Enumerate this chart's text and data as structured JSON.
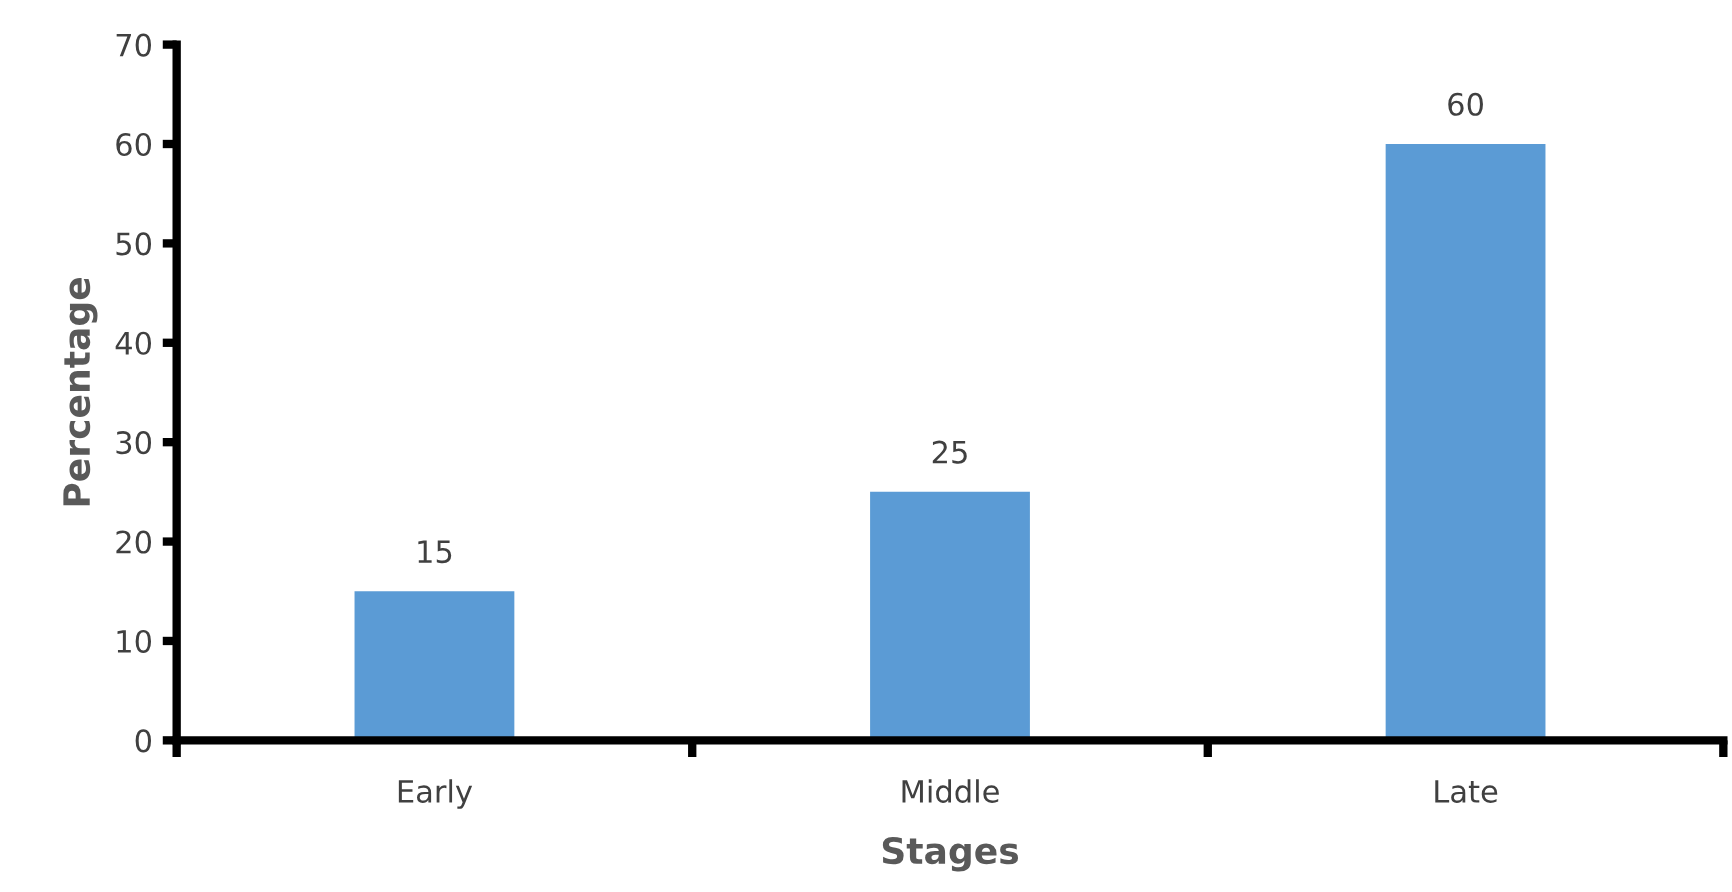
{
  "chart_data": {
    "type": "bar",
    "xlabel": "Stages",
    "ylabel": "Percentage",
    "categories": [
      "Early",
      "Middle",
      "Late"
    ],
    "values": [
      15,
      25,
      60
    ],
    "color": "#5b9bd5",
    "ylim": [
      0,
      70
    ],
    "yticks": [
      0,
      10,
      20,
      30,
      40,
      50,
      60,
      70
    ],
    "data_labels": true,
    "grid": false,
    "legend": false
  }
}
